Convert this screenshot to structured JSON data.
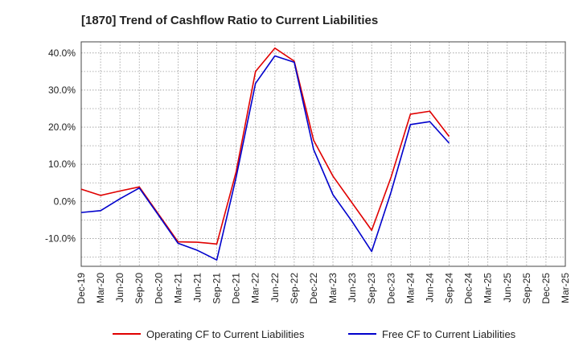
{
  "chart_data": {
    "type": "line",
    "title": "[1870]  Trend of Cashflow Ratio to Current Liabilities",
    "categories": [
      "Dec-19",
      "Mar-20",
      "Jun-20",
      "Sep-20",
      "Dec-20",
      "Mar-21",
      "Jun-21",
      "Sep-21",
      "Dec-21",
      "Mar-22",
      "Jun-22",
      "Sep-22",
      "Dec-22",
      "Mar-23",
      "Jun-23",
      "Sep-23",
      "Dec-23",
      "Mar-24",
      "Jun-24",
      "Sep-24",
      "Dec-24",
      "Mar-25"
    ],
    "xticks": [
      "Dec-19",
      "Mar-20",
      "Jun-20",
      "Sep-20",
      "Dec-20",
      "Mar-21",
      "Jun-21",
      "Sep-21",
      "Dec-21",
      "Mar-22",
      "Jun-22",
      "Sep-22",
      "Dec-22",
      "Mar-23",
      "Jun-23",
      "Sep-23",
      "Dec-23",
      "Mar-24",
      "Jun-24",
      "Sep-24",
      "Dec-24",
      "Mar-25",
      "Jun-25",
      "Sep-25",
      "Dec-25",
      "Mar-25"
    ],
    "ylim": [
      -17.5,
      43
    ],
    "yticks": [
      -10,
      0,
      10,
      20,
      30,
      40
    ],
    "ytick_labels": [
      "-10.0%",
      "0.0%",
      "10.0%",
      "20.0%",
      "30.0%",
      "40.0%"
    ],
    "grid": true,
    "legend_position": "bottom",
    "series": [
      {
        "name": "Operating CF to Current Liabilities",
        "color": "#e00000",
        "values": [
          3.3,
          1.6,
          2.8,
          3.9,
          -3.5,
          -10.9,
          -11.0,
          -11.5,
          8.0,
          35.0,
          41.3,
          37.8,
          16.5,
          6.8,
          -0.5,
          -7.8,
          6.5,
          23.5,
          24.3,
          17.5,
          null,
          null
        ]
      },
      {
        "name": "Free CF to Current Liabilities",
        "color": "#0000cc",
        "values": [
          -3.0,
          -2.5,
          0.7,
          3.6,
          -3.8,
          -11.3,
          -13.2,
          -15.8,
          6.5,
          31.8,
          39.2,
          37.5,
          14.0,
          1.8,
          -5.5,
          -13.5,
          2.5,
          20.7,
          21.5,
          15.7,
          null,
          null
        ]
      }
    ]
  }
}
